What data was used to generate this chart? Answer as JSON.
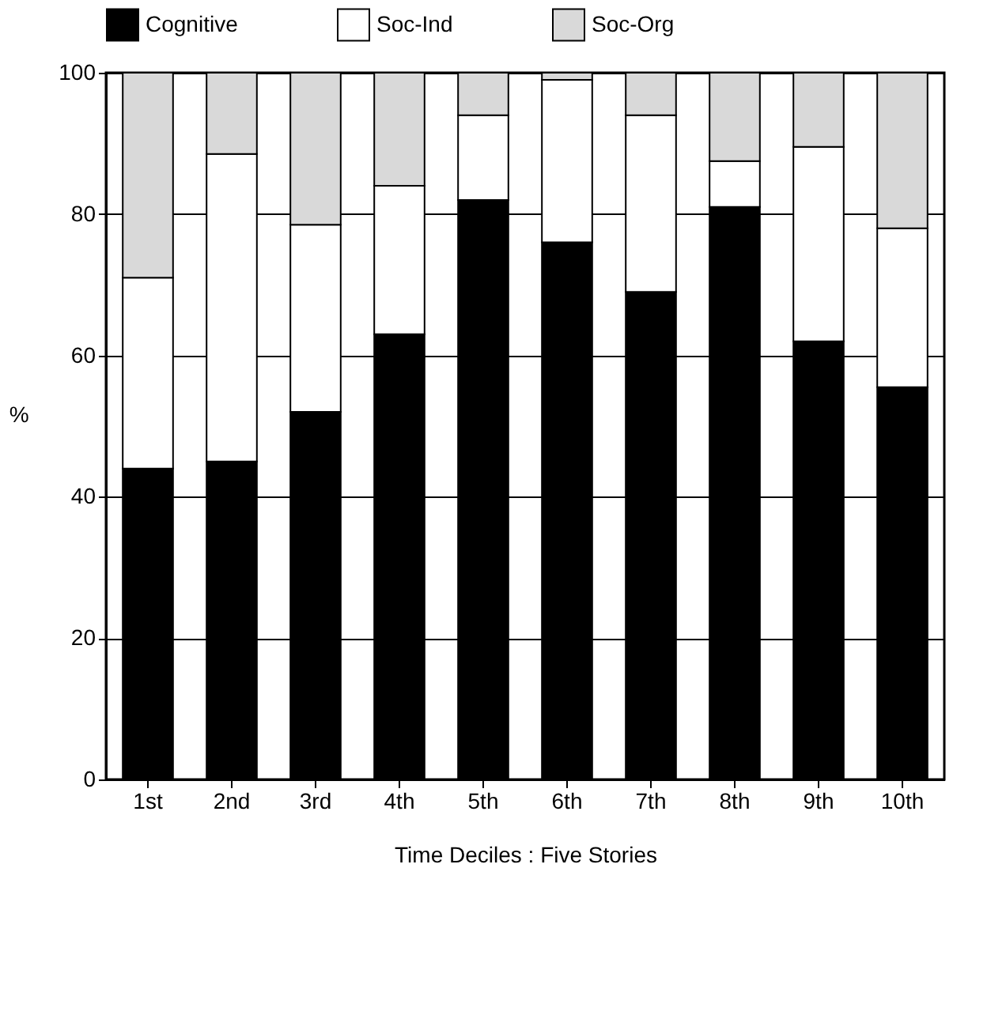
{
  "chart_data": {
    "type": "bar",
    "stacked": true,
    "xlabel": "Time Deciles : Five Stories",
    "ylabel": "%",
    "categories": [
      "1st",
      "2nd",
      "3rd",
      "4th",
      "5th",
      "6th",
      "7th",
      "8th",
      "9th",
      "10th"
    ],
    "series": [
      {
        "name": "Cognitive",
        "color": "#000000",
        "values": [
          44,
          45,
          52,
          63,
          82,
          76,
          69,
          81,
          62,
          55.5
        ]
      },
      {
        "name": "Soc-Ind",
        "color": "#ffffff",
        "values": [
          27,
          43.5,
          26.5,
          21,
          12,
          23,
          25,
          6.5,
          27.5,
          22.5
        ]
      },
      {
        "name": "Soc-Org",
        "color": "#d9d9d9",
        "values": [
          29,
          11.5,
          21.5,
          16,
          6,
          1,
          6,
          12.5,
          10.5,
          22
        ]
      }
    ],
    "ylim": [
      0,
      100
    ],
    "yticks": [
      0,
      20,
      40,
      60,
      80,
      100
    ],
    "grid": "y",
    "legend": "top"
  }
}
